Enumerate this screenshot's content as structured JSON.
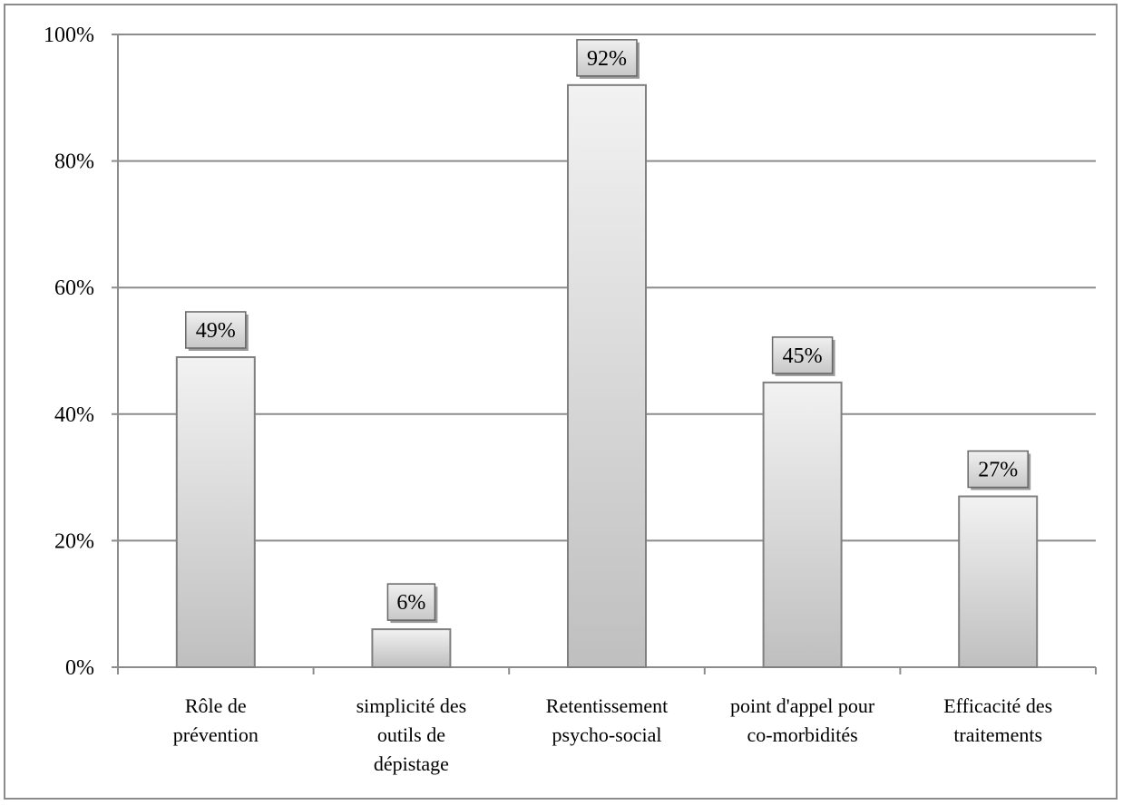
{
  "chart_data": {
    "type": "bar",
    "categories": [
      [
        "Rôle de",
        "prévention"
      ],
      [
        "simplicité des",
        "outils de",
        "dépistage"
      ],
      [
        "Retentissement",
        "psycho-social"
      ],
      [
        "point d'appel pour",
        "co-morbidités"
      ],
      [
        "Efficacité des",
        "traitements"
      ]
    ],
    "values": [
      49,
      6,
      92,
      45,
      27
    ],
    "data_labels": [
      "49%",
      "6%",
      "92%",
      "45%",
      "27%"
    ],
    "y_ticks": [
      "0%",
      "20%",
      "40%",
      "60%",
      "80%",
      "100%"
    ],
    "ylim": [
      0,
      100
    ],
    "grid": true,
    "legend": "none",
    "colors": {
      "bar_top": "#f2f2f2",
      "bar_bottom": "#bfbfbf",
      "bar_edge": "#7f7f7f",
      "grid": "#8c8c8c",
      "label_box_top": "#f0f0f0",
      "label_box_bottom": "#c8c8c8"
    }
  }
}
